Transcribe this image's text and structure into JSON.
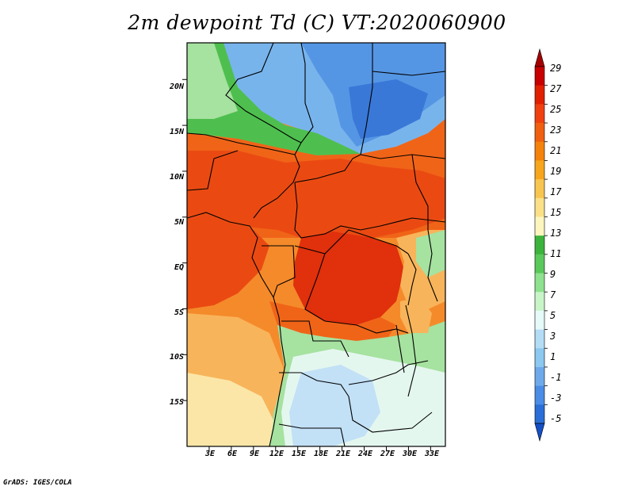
{
  "title": "2m dewpoint Td (C) VT:2020060900",
  "credit": "GrADS: IGES/COLA",
  "map": {
    "lat_ticks": [
      "20N",
      "15N",
      "10N",
      "5N",
      "EQ",
      "5S",
      "10S",
      "15S"
    ],
    "lon_ticks": [
      "3E",
      "6E",
      "9E",
      "12E",
      "15E",
      "18E",
      "21E",
      "24E",
      "27E",
      "30E",
      "33E"
    ],
    "lon_range": [
      0,
      35
    ],
    "lat_range": [
      -20,
      24
    ]
  },
  "colorbar": {
    "labels": [
      "29",
      "27",
      "25",
      "23",
      "21",
      "19",
      "17",
      "15",
      "13",
      "11",
      "9",
      "7",
      "5",
      "3",
      "1",
      "-1",
      "-3",
      "-5"
    ],
    "colors": [
      "#a50000",
      "#c80000",
      "#e02000",
      "#f04010",
      "#f06010",
      "#f5820a",
      "#f7a51c",
      "#f8c550",
      "#fae188",
      "#fcf6be",
      "#3cb43c",
      "#5ac85a",
      "#8ee18e",
      "#c8f5c8",
      "#e6fafa",
      "#b4dcf5",
      "#8cc8f0",
      "#6eaaeb",
      "#4a8ce6",
      "#2a6ed7",
      "#1450c8"
    ]
  },
  "palette": {
    "red_dark": "#e0300c",
    "red": "#ea4a12",
    "orange_red": "#f06418",
    "orange": "#f58a2a",
    "light_orange": "#f8b45a",
    "pale": "#fbe6a8",
    "green": "#4ebf4e",
    "light_green": "#a6e2a0",
    "very_pale": "#e4f7ef",
    "light_blue": "#c2e0f6",
    "blue": "#78b4ec",
    "mid_blue": "#5596e4",
    "dark_blue": "#3a78d8"
  }
}
